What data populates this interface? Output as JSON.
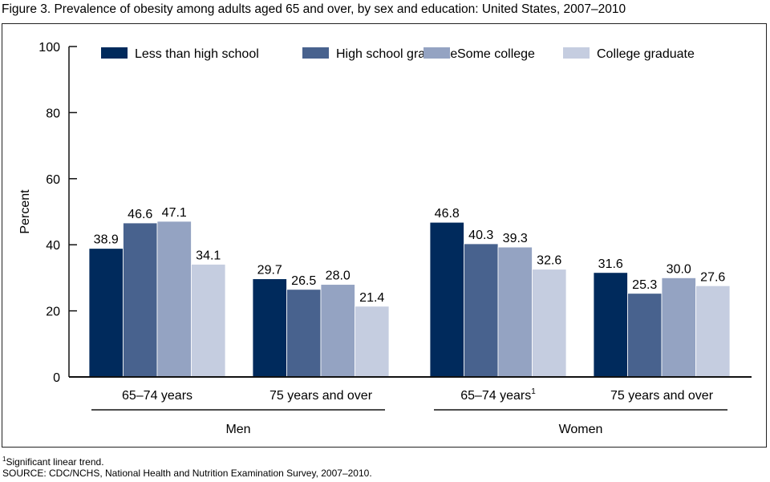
{
  "figure": {
    "title": "Figure 3. Prevalence of obesity among adults aged 65 and over, by sex and education: United States, 2007–2010",
    "footnote": "Significant linear trend.",
    "footnote_marker": "1",
    "source": "SOURCE: CDC/NCHS, National Health and Nutrition Examination Survey, 2007–2010."
  },
  "chart_data": {
    "type": "bar",
    "title": "Prevalence of obesity among adults aged 65 and over, by sex and education: United States, 2007–2010",
    "xlabel": "",
    "ylabel": "Percent",
    "ylim": [
      0,
      100
    ],
    "yticks": [
      0,
      20,
      40,
      60,
      80,
      100
    ],
    "grid": false,
    "legend_position": "top",
    "categories": [
      "65–74 years",
      "75 years and over",
      "65–74 years",
      "75 years and over"
    ],
    "category_superscripts": [
      "",
      "",
      "1",
      ""
    ],
    "groups": [
      {
        "label": "Men",
        "categories": [
          0,
          1
        ]
      },
      {
        "label": "Women",
        "categories": [
          2,
          3
        ]
      }
    ],
    "series": [
      {
        "name": "Less than high school",
        "color": "#002a5c",
        "values": [
          38.9,
          29.7,
          46.8,
          31.6
        ]
      },
      {
        "name": "High school graduate",
        "color": "#48628e",
        "values": [
          46.6,
          26.5,
          40.3,
          25.3
        ]
      },
      {
        "name": "Some college",
        "color": "#94a3c2",
        "values": [
          47.1,
          28.0,
          39.3,
          30.0
        ]
      },
      {
        "name": "College graduate",
        "color": "#c5cde0",
        "values": [
          34.1,
          21.4,
          32.6,
          27.6
        ]
      }
    ]
  }
}
